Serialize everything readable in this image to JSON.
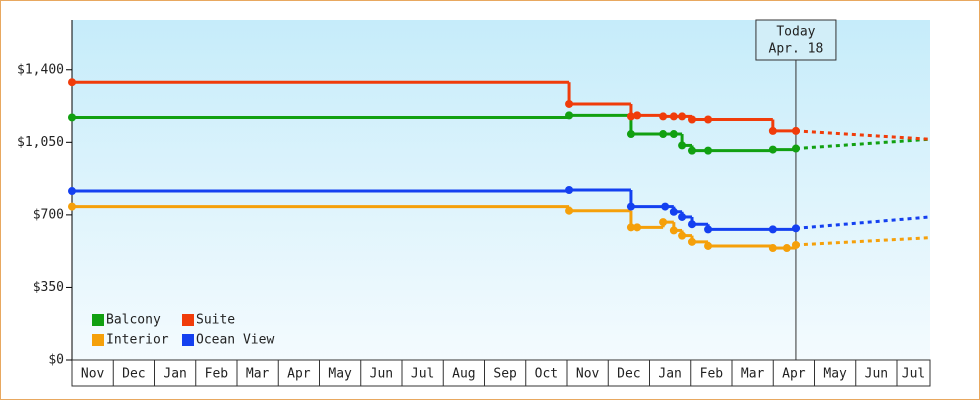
{
  "chart_data": {
    "type": "step-line",
    "categories": [
      "Nov",
      "Dec",
      "Jan",
      "Feb",
      "Mar",
      "Apr",
      "May",
      "Jun",
      "Jul",
      "Aug",
      "Sep",
      "Oct",
      "Nov",
      "Dec",
      "Jan",
      "Feb",
      "Mar",
      "Apr",
      "May",
      "Jun",
      "Jul"
    ],
    "xlim": [
      0,
      20.8
    ],
    "ylim": [
      0,
      1640
    ],
    "yticks": [
      {
        "value": 0,
        "label": "$0"
      },
      {
        "value": 350,
        "label": "$350"
      },
      {
        "value": 700,
        "label": "$700"
      },
      {
        "value": 1050,
        "label": "$1,050"
      },
      {
        "value": 1400,
        "label": "$1,400"
      }
    ],
    "legend": "lower left",
    "annotation": {
      "x": 17.55,
      "lines": [
        "Today",
        "Apr. 18"
      ]
    },
    "series": [
      {
        "name": "Balcony",
        "color": "#11a011",
        "x": [
          0,
          12.05,
          13.55,
          14.33,
          14.59,
          14.79,
          15.03,
          15.42,
          16.99,
          17.55
        ],
        "values": [
          1170,
          1180,
          1090,
          1090,
          1090,
          1035,
          1010,
          1010,
          1015,
          1020
        ],
        "forecast_x": 20.8,
        "forecast_value": 1065
      },
      {
        "name": "Suite",
        "color": "#f03c0a",
        "x": [
          0,
          12.05,
          13.55,
          13.7,
          14.33,
          14.59,
          14.79,
          15.03,
          15.42,
          16.99,
          17.55
        ],
        "values": [
          1340,
          1235,
          1175,
          1180,
          1175,
          1175,
          1175,
          1160,
          1160,
          1105,
          1105
        ],
        "forecast_x": 20.8,
        "forecast_value": 1065
      },
      {
        "name": "Interior",
        "color": "#f5a00a",
        "x": [
          0,
          12.05,
          13.55,
          13.7,
          14.33,
          14.59,
          14.79,
          15.03,
          15.42,
          16.99,
          17.33,
          17.55
        ],
        "values": [
          740,
          720,
          640,
          640,
          665,
          625,
          600,
          570,
          550,
          540,
          540,
          555
        ],
        "forecast_x": 20.8,
        "forecast_value": 590
      },
      {
        "name": "Ocean View",
        "color": "#1440f0",
        "x": [
          0,
          12.05,
          13.55,
          14.38,
          14.59,
          14.79,
          15.03,
          15.42,
          16.99,
          17.55
        ],
        "values": [
          815,
          820,
          740,
          740,
          715,
          690,
          655,
          630,
          630,
          635
        ],
        "forecast_x": 20.8,
        "forecast_value": 690
      }
    ]
  }
}
